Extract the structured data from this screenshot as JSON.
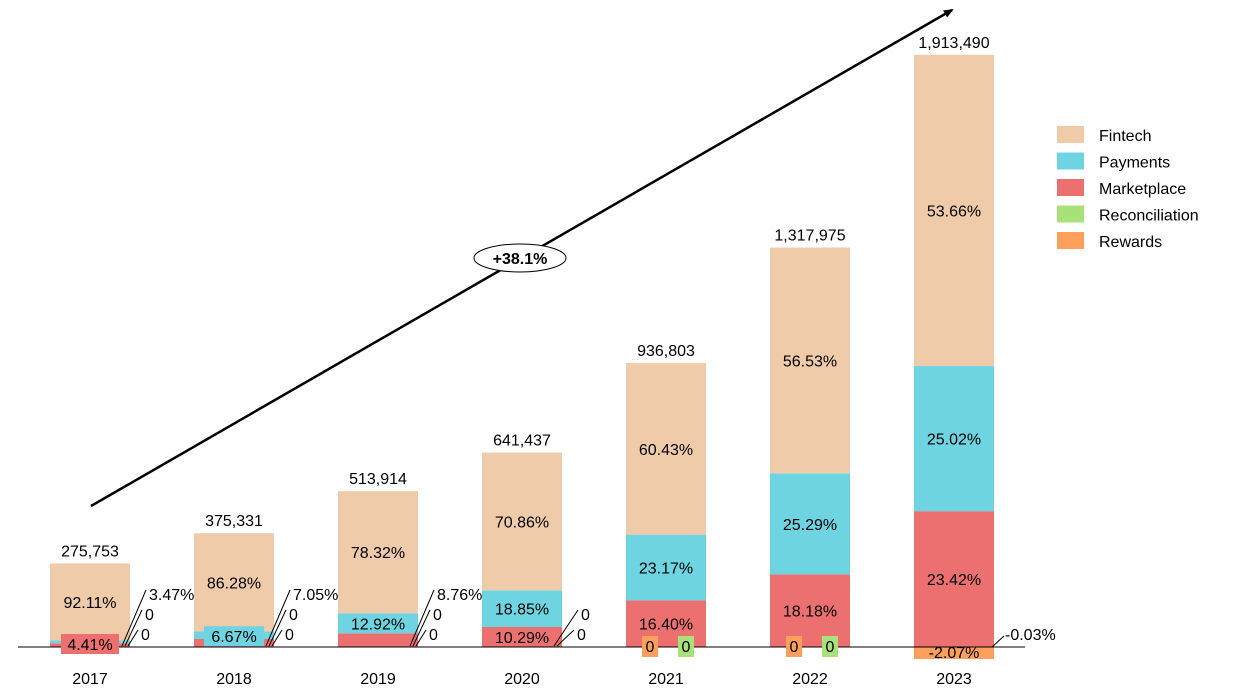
{
  "chart_data": {
    "type": "bar",
    "stacked": true,
    "categories": [
      "2017",
      "2018",
      "2019",
      "2020",
      "2021",
      "2022",
      "2023"
    ],
    "totals": [
      "275,753",
      "375,331",
      "513,914",
      "641,437",
      "936,803",
      "1,317,975",
      "1,913,490"
    ],
    "total_values": [
      275753,
      375331,
      513914,
      641437,
      936803,
      1317975,
      1913490
    ],
    "series": [
      {
        "name": "Fintech",
        "color": "#EFCBAA",
        "percent": [
          92.11,
          86.28,
          78.32,
          70.86,
          60.43,
          56.53,
          53.66
        ],
        "labels": [
          "92.11%",
          "86.28%",
          "78.32%",
          "70.86%",
          "60.43%",
          "56.53%",
          "53.66%"
        ]
      },
      {
        "name": "Payments",
        "color": "#6FD4E1",
        "percent": [
          3.47,
          6.67,
          12.92,
          18.85,
          23.17,
          25.29,
          25.02
        ],
        "labels": [
          "3.47%",
          "6.67%",
          "12.92%",
          "18.85%",
          "23.17%",
          "25.29%",
          "25.02%"
        ]
      },
      {
        "name": "Marketplace",
        "color": "#EC7070",
        "percent": [
          4.41,
          7.05,
          8.76,
          10.29,
          16.4,
          18.18,
          23.42
        ],
        "labels": [
          "4.41%",
          "7.05%",
          "8.76%",
          "10.29%",
          "16.40%",
          "18.18%",
          "23.42%"
        ]
      },
      {
        "name": "Reconciliation",
        "color": "#A8E07A",
        "percent": [
          0,
          0,
          0,
          0,
          0,
          0,
          -0.03
        ],
        "labels": [
          "0",
          "0",
          "0",
          "0",
          "0",
          "0",
          "-0.03%"
        ]
      },
      {
        "name": "Rewards",
        "color": "#FF9F5C",
        "percent": [
          0,
          0,
          0,
          0,
          0,
          0,
          -2.07
        ],
        "labels": [
          "0",
          "0",
          "0",
          "0",
          "0",
          "0",
          "-2.07%"
        ]
      }
    ],
    "cagr_label": "+38.1%",
    "ylim": [
      -100000,
      2000000
    ],
    "legend_position": "right",
    "grid": false
  }
}
